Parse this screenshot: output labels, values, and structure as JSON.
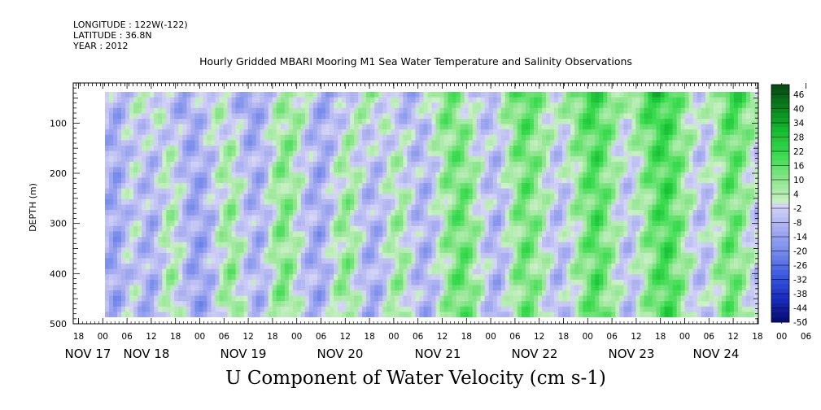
{
  "header": {
    "longitude": "LONGITUDE : 122W(-122)",
    "latitude": "LATITUDE : 36.8N",
    "year": "YEAR : 2012"
  },
  "chart_data": {
    "type": "heatmap",
    "title": "Hourly Gridded MBARI Mooring M1 Sea Water Temperature and Salinity Observations",
    "xlabel": "U Component of Water Velocity (cm s-1)",
    "ylabel": "DEPTH (m)",
    "ylim": [
      500,
      20
    ],
    "y_ticks": [
      100,
      200,
      300,
      400,
      500
    ],
    "x_hour_ticks": [
      "18",
      "00",
      "06",
      "12",
      "18",
      "00",
      "06",
      "12",
      "18",
      "00",
      "06",
      "12",
      "18",
      "00",
      "06",
      "12",
      "18",
      "00",
      "06",
      "12",
      "18",
      "00",
      "06",
      "12",
      "18",
      "00",
      "06",
      "12",
      "18",
      "00",
      "06",
      "12",
      "18"
    ],
    "x_date_labels": [
      "NOV 17",
      "NOV 18",
      "NOV 19",
      "NOV 20",
      "NOV 21",
      "NOV 22",
      "NOV 23",
      "NOV 24"
    ],
    "colorbar_labels": [
      "46",
      "40",
      "34",
      "28",
      "22",
      "16",
      "10",
      "4",
      "-2",
      "-8",
      "-14",
      "-20",
      "-26",
      "-32",
      "-38",
      "-44",
      "-50"
    ],
    "colorbar_range": [
      -50,
      50
    ],
    "column_profile_velocity_cm_s": [
      -10,
      -14,
      -6,
      -2,
      -8,
      -12,
      -4,
      6,
      2,
      -8,
      -14,
      -12,
      -6,
      4,
      10,
      2,
      -6,
      -10,
      -4,
      8,
      12,
      4,
      -4,
      -10,
      -12,
      -4,
      6,
      10,
      2,
      -8,
      -12,
      -6,
      4,
      8,
      0,
      -8,
      -10,
      -4,
      6,
      12,
      16,
      10,
      2,
      -6,
      -10,
      -2,
      8,
      14,
      10,
      4,
      -4,
      -8,
      -2,
      6,
      12,
      18,
      12,
      4,
      -4,
      -6,
      2,
      10,
      16,
      20,
      14,
      6,
      -2,
      -6,
      0,
      8,
      14,
      10,
      2,
      -4
    ],
    "surface_velocity_cm_s": [
      -6,
      -10,
      -4,
      2,
      6,
      -2,
      -10,
      -14,
      -8,
      0,
      4,
      -4,
      -12,
      -16,
      -10,
      -2,
      6,
      10,
      2,
      -8,
      -14,
      -10,
      -4,
      4,
      8,
      2,
      -6,
      -12,
      -8,
      0,
      10,
      14,
      8,
      -2,
      -8,
      -4,
      6,
      14,
      18,
      12,
      6,
      2,
      10,
      16,
      22,
      18,
      10,
      4,
      12,
      20,
      26,
      20,
      12,
      6,
      -2,
      4,
      14,
      22,
      16,
      8
    ]
  }
}
